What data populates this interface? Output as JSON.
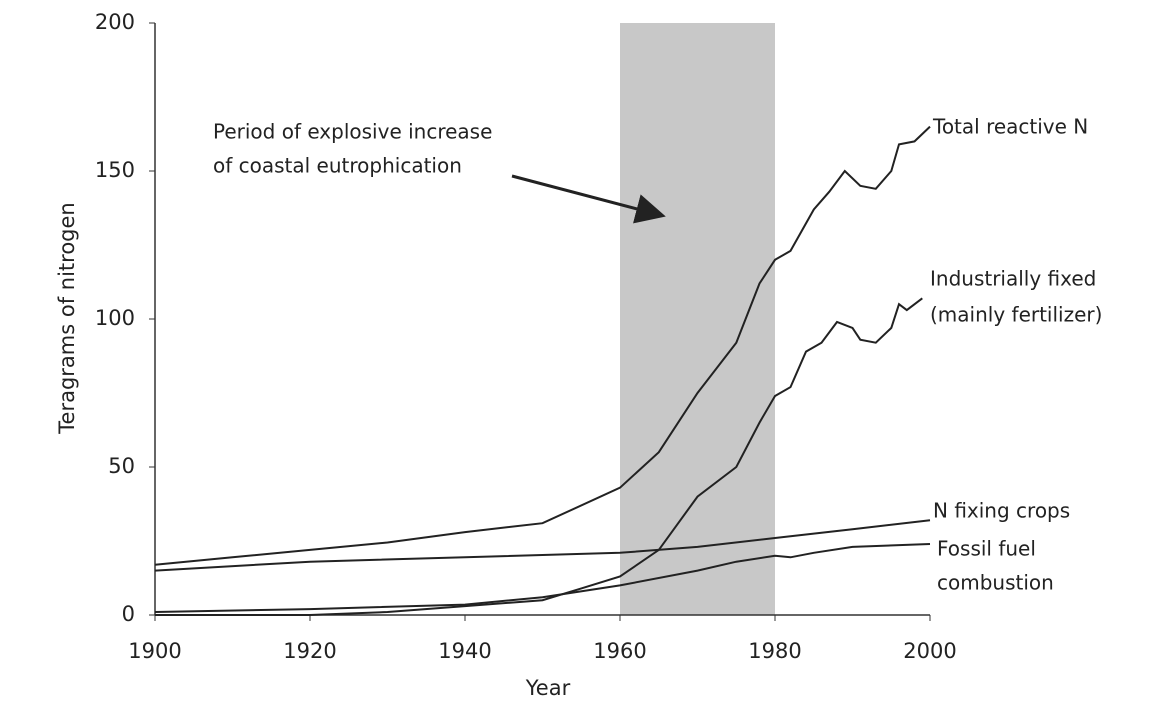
{
  "chart_data": {
    "type": "line",
    "xlabel": "Year",
    "ylabel": "Teragrams of nitrogen",
    "xlim": [
      1900,
      2000
    ],
    "ylim": [
      0,
      200
    ],
    "xticks": [
      1900,
      1920,
      1940,
      1960,
      1980,
      2000
    ],
    "yticks": [
      0,
      50,
      100,
      150,
      200
    ],
    "shaded_range": [
      1960,
      1980
    ],
    "shade_color": "#c8c8c8",
    "annotation": [
      "Period of explosive increase",
      "of coastal eutrophication"
    ],
    "series": [
      {
        "name": [
          "Total reactive N"
        ],
        "color": "#222222",
        "x": [
          1900,
          1910,
          1920,
          1930,
          1940,
          1950,
          1960,
          1965,
          1970,
          1975,
          1978,
          1980,
          1982,
          1985,
          1987,
          1989,
          1991,
          1993,
          1995,
          1996,
          1998,
          2000
        ],
        "values": [
          17,
          19.5,
          22,
          24.5,
          28,
          31,
          43,
          55,
          75,
          92,
          112,
          120,
          123,
          137,
          143,
          150,
          145,
          144,
          150,
          159,
          160,
          165
        ]
      },
      {
        "name": [
          "Industrially fixed",
          "(mainly fertilizer)"
        ],
        "color": "#222222",
        "x": [
          1900,
          1920,
          1930,
          1940,
          1950,
          1955,
          1960,
          1965,
          1970,
          1975,
          1978,
          1980,
          1982,
          1984,
          1986,
          1988,
          1990,
          1991,
          1993,
          1995,
          1996,
          1997,
          1999
        ],
        "values": [
          0,
          0,
          1,
          3,
          5,
          9,
          13,
          22,
          40,
          50,
          65,
          74,
          77,
          89,
          92,
          99,
          97,
          93,
          92,
          97,
          105,
          103,
          107
        ]
      },
      {
        "name": [
          "N fixing crops"
        ],
        "color": "#222222",
        "x": [
          1900,
          1920,
          1940,
          1960,
          1970,
          1980,
          1990,
          2000
        ],
        "values": [
          15,
          18,
          19.5,
          21,
          23,
          26,
          29,
          32
        ]
      },
      {
        "name": [
          "Fossil fuel",
          "combustion"
        ],
        "color": "#222222",
        "x": [
          1900,
          1920,
          1940,
          1950,
          1960,
          1970,
          1975,
          1980,
          1982,
          1985,
          1990,
          2000
        ],
        "values": [
          1,
          2,
          3.5,
          6,
          10,
          15,
          18,
          20,
          19.5,
          21,
          23,
          24
        ]
      }
    ]
  }
}
